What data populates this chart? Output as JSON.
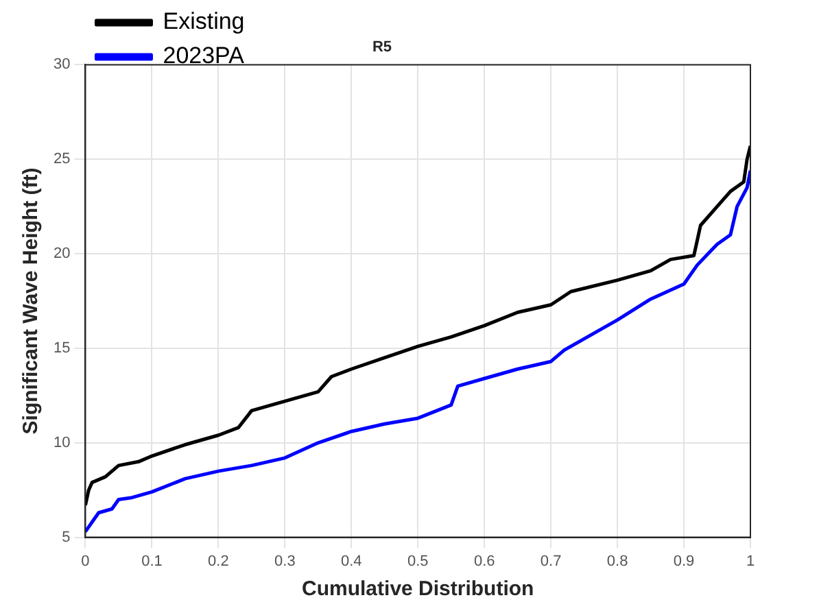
{
  "chart_data": {
    "type": "line",
    "title": "R5",
    "xlabel": "Cumulative Distribution",
    "ylabel": "Significant Wave Height (ft)",
    "xlim": [
      0,
      1
    ],
    "xticks": [
      0,
      0.1,
      0.2,
      0.3,
      0.4,
      0.5,
      0.6,
      0.7,
      0.8,
      0.9,
      1
    ],
    "ylim": [
      5,
      30
    ],
    "yticks": [
      5,
      10,
      15,
      20,
      25,
      30
    ],
    "grid": true,
    "legend": "top left",
    "line_style": "solid",
    "marker": "none",
    "series": [
      {
        "name": "Existing",
        "color": "#000000",
        "x": [
          0,
          0.005,
          0.01,
          0.03,
          0.05,
          0.08,
          0.1,
          0.15,
          0.2,
          0.23,
          0.25,
          0.3,
          0.35,
          0.37,
          0.4,
          0.45,
          0.5,
          0.55,
          0.6,
          0.65,
          0.7,
          0.73,
          0.8,
          0.85,
          0.88,
          0.915,
          0.925,
          0.95,
          0.97,
          0.99,
          0.995,
          1
        ],
        "values": [
          6.7,
          7.5,
          7.9,
          8.2,
          8.8,
          9.0,
          9.3,
          9.9,
          10.4,
          10.8,
          11.7,
          12.2,
          12.7,
          13.5,
          13.9,
          14.5,
          15.1,
          15.6,
          16.2,
          16.9,
          17.3,
          18.0,
          18.6,
          19.1,
          19.7,
          19.9,
          21.5,
          22.5,
          23.3,
          23.8,
          25.0,
          25.7
        ]
      },
      {
        "name": "2023PA",
        "color": "#0000ff",
        "x": [
          0,
          0.01,
          0.02,
          0.04,
          0.05,
          0.07,
          0.1,
          0.15,
          0.2,
          0.25,
          0.3,
          0.35,
          0.4,
          0.45,
          0.5,
          0.55,
          0.56,
          0.6,
          0.65,
          0.7,
          0.72,
          0.75,
          0.8,
          0.85,
          0.9,
          0.92,
          0.95,
          0.97,
          0.98,
          0.995,
          1
        ],
        "values": [
          5.3,
          5.8,
          6.3,
          6.5,
          7.0,
          7.1,
          7.4,
          8.1,
          8.5,
          8.8,
          9.2,
          10.0,
          10.6,
          11.0,
          11.3,
          12.0,
          13.0,
          13.4,
          13.9,
          14.3,
          14.9,
          15.5,
          16.5,
          17.6,
          18.4,
          19.4,
          20.5,
          21.0,
          22.5,
          23.5,
          24.4
        ]
      }
    ]
  }
}
